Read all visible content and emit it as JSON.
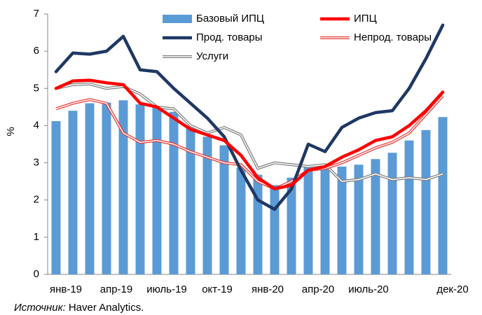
{
  "chart_data": {
    "type": "bar_line",
    "ylabel": "%",
    "categories": [
      "янв-19",
      null,
      null,
      "апр-19",
      null,
      null,
      "июль-19",
      null,
      null,
      "окт-19",
      null,
      null,
      "янв-20",
      null,
      null,
      "апр-20",
      null,
      null,
      "июль-20",
      null,
      null,
      null,
      null,
      "дек-20"
    ],
    "ylim": [
      0,
      7
    ],
    "yticks": [
      0,
      1,
      2,
      3,
      4,
      5,
      6,
      7
    ],
    "grid": false,
    "series": [
      {
        "name": "Базовый ИПЦ",
        "kind": "bar",
        "color": "#5b9bd5",
        "values": [
          4.12,
          4.4,
          4.6,
          4.62,
          4.68,
          4.57,
          4.5,
          4.37,
          4.0,
          3.7,
          3.47,
          2.87,
          2.68,
          2.4,
          2.6,
          2.9,
          2.93,
          2.9,
          2.95,
          3.1,
          3.27,
          3.6,
          3.88,
          4.23
        ]
      },
      {
        "name": "ИПЦ",
        "kind": "line",
        "color": "#ff0000",
        "values": [
          5.0,
          5.2,
          5.22,
          5.15,
          5.1,
          4.6,
          4.5,
          4.2,
          3.9,
          3.75,
          3.6,
          3.2,
          2.6,
          2.3,
          2.4,
          2.8,
          2.9,
          3.15,
          3.35,
          3.6,
          3.7,
          4.0,
          4.4,
          4.9
        ]
      },
      {
        "name": "Прод. товары",
        "kind": "line",
        "color": "#1f3864",
        "values": [
          5.45,
          5.95,
          5.92,
          6.0,
          6.4,
          5.5,
          5.45,
          5.0,
          4.6,
          4.2,
          3.7,
          2.8,
          2.0,
          1.75,
          2.3,
          3.5,
          3.3,
          3.95,
          4.2,
          4.35,
          4.4,
          5.0,
          5.8,
          6.7
        ]
      },
      {
        "name": "Непрод. товары",
        "kind": "double",
        "color": "#e53935",
        "values": [
          4.45,
          4.6,
          4.7,
          4.6,
          3.8,
          3.55,
          3.6,
          3.5,
          3.3,
          3.15,
          3.0,
          2.95,
          2.5,
          2.3,
          2.5,
          2.8,
          2.85,
          3.0,
          3.2,
          3.4,
          3.55,
          3.8,
          4.3,
          4.8
        ]
      },
      {
        "name": "Услуги",
        "kind": "double",
        "color": "#7f7f7f",
        "values": [
          5.0,
          5.1,
          5.12,
          5.0,
          5.05,
          4.85,
          4.5,
          4.45,
          4.0,
          3.8,
          3.95,
          3.75,
          2.85,
          3.0,
          2.95,
          2.9,
          2.95,
          2.5,
          2.55,
          2.7,
          2.55,
          2.6,
          2.55,
          2.7
        ]
      }
    ],
    "source_label": "Источник:",
    "source": "Haver Analytics."
  }
}
